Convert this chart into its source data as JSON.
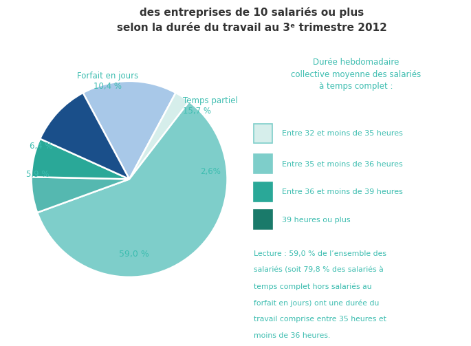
{
  "title_line1": "des entreprises de 10 salariés ou plus",
  "title_line2": "selon la durée du travail au 3ᵉ trimestre 2012",
  "slices": [
    {
      "label": "Temps partiel\n15,7 %",
      "value": 15.7,
      "color": "#a8c8e8"
    },
    {
      "label": "2,6%",
      "value": 2.6,
      "color": "#d6eeeb"
    },
    {
      "label": "59,0 %",
      "value": 59.0,
      "color": "#7ececa"
    },
    {
      "label": "5,9 %",
      "value": 5.9,
      "color": "#55b8b0"
    },
    {
      "label": "6,4 %",
      "value": 6.4,
      "color": "#2aa898"
    },
    {
      "label": "Forfait en jours\n10,4 %",
      "value": 10.4,
      "color": "#1a4f8a"
    }
  ],
  "legend_title": "Durée hebdomadaire\ncollective moyenne des salariés\nà temps complet :",
  "legend_items": [
    {
      "color": "#d6eeeb",
      "edge": "#7ececa",
      "label": "Entre 32 et moins de 35 heures"
    },
    {
      "color": "#7ececa",
      "edge": "#7ececa",
      "label": "Entre 35 et moins de 36 heures"
    },
    {
      "color": "#2aa898",
      "edge": "#2aa898",
      "label": "Entre 36 et moins de 39 heures"
    },
    {
      "color": "#1a7a6a",
      "edge": "#1a7a6a",
      "label": "39 heures ou plus"
    }
  ],
  "lecture_text": "Lecture : 59,0 % de l’ensemble des\nsa lariés (soit 79,8 % des salariés à\ntemps complet hors salariés au\nforfait en jours) ont une durée du\ntravail comprise entre 35 heures et\nmoins de 36 heures.",
  "text_color": "#3dbdb0",
  "title_color": "#333333",
  "bg_color": "#ffffff"
}
